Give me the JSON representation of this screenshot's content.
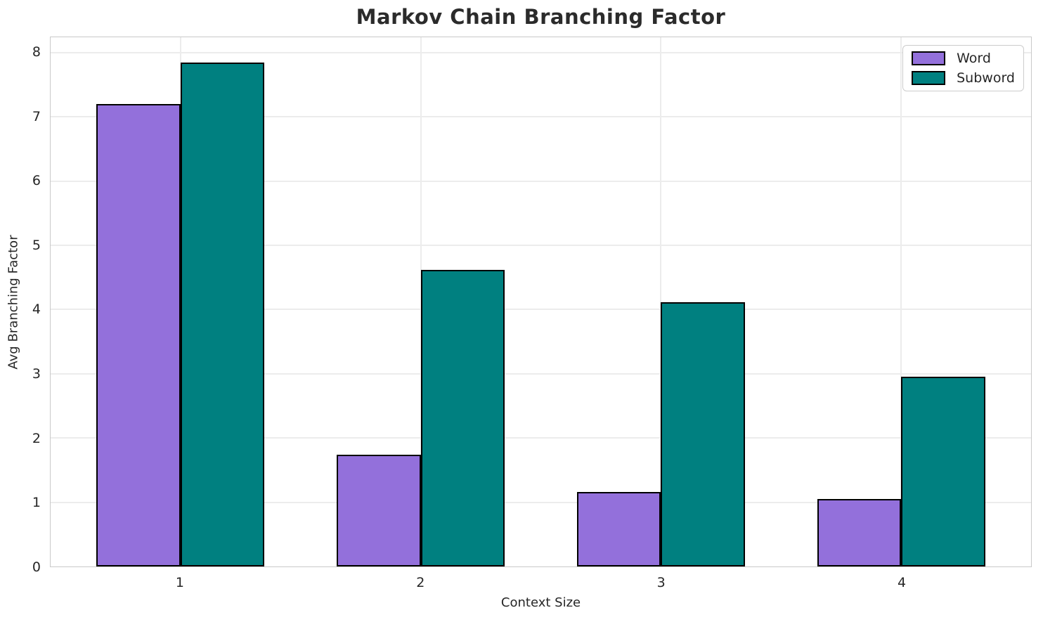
{
  "chart_data": {
    "type": "bar",
    "title": "Markov Chain Branching Factor",
    "xlabel": "Context Size",
    "ylabel": "Avg Branching Factor",
    "categories": [
      "1",
      "2",
      "3",
      "4"
    ],
    "series": [
      {
        "name": "Word",
        "color": "#9370db",
        "values": [
          7.2,
          1.74,
          1.16,
          1.05
        ]
      },
      {
        "name": "Subword",
        "color": "#008080",
        "values": [
          7.85,
          4.62,
          4.12,
          2.95
        ]
      }
    ],
    "bar_width": 0.35,
    "bar_edge_color": "#000000",
    "ylim": [
      0,
      8.24
    ],
    "yticks": [
      0,
      1,
      2,
      3,
      4,
      5,
      6,
      7,
      8
    ],
    "xlim": [
      -0.54,
      3.54
    ],
    "grid": true,
    "legend": {
      "position": "upper right",
      "entries": [
        "Word",
        "Subword"
      ]
    }
  },
  "style": {
    "grid_color": "#ececec",
    "spine_color": "#c9c9c9",
    "text_color": "#262626",
    "title_color": "#2b2b2b",
    "background": "#ffffff"
  }
}
